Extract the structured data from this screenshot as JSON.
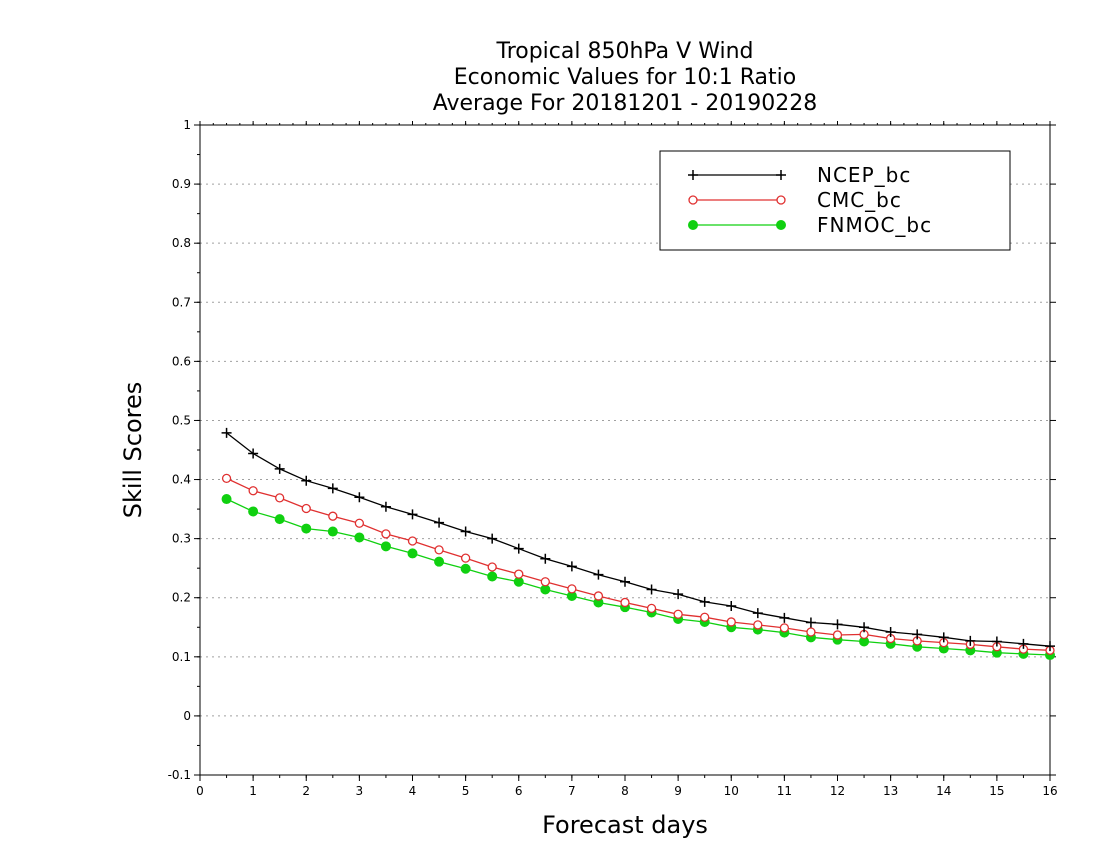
{
  "chart_data": {
    "type": "line",
    "title": [
      "Tropical 850hPa V Wind",
      "Economic Values for 10:1 Ratio",
      "Average For 20181201 - 20190228"
    ],
    "xlabel": "Forecast days",
    "ylabel": "Skill Scores",
    "xlim": [
      0,
      16
    ],
    "ylim": [
      -0.1,
      1
    ],
    "xticks": [
      "0",
      "1",
      "2",
      "3",
      "4",
      "5",
      "6",
      "7",
      "8",
      "9",
      "10",
      "11",
      "12",
      "13",
      "14",
      "15",
      "16"
    ],
    "yticks": [
      "-0.1",
      "0",
      "0.1",
      "0.2",
      "0.3",
      "0.4",
      "0.5",
      "0.6",
      "0.7",
      "0.8",
      "0.9",
      "1"
    ],
    "ytick_values": [
      -0.1,
      0,
      0.1,
      0.2,
      0.3,
      0.4,
      0.5,
      0.6,
      0.7,
      0.8,
      0.9,
      1
    ],
    "grid": true,
    "legend_position": "top-right",
    "x": [
      0.5,
      1,
      1.5,
      2,
      2.5,
      3,
      3.5,
      4,
      4.5,
      5,
      5.5,
      6,
      6.5,
      7,
      7.5,
      8,
      8.5,
      9,
      9.5,
      10,
      10.5,
      11,
      11.5,
      12,
      12.5,
      13,
      13.5,
      14,
      14.5,
      15,
      15.5,
      16
    ],
    "series": [
      {
        "name": "NCEP_bc",
        "color": "#000000",
        "marker": "plus",
        "values": [
          0.479,
          0.444,
          0.418,
          0.398,
          0.385,
          0.37,
          0.354,
          0.341,
          0.327,
          0.312,
          0.3,
          0.283,
          0.266,
          0.253,
          0.239,
          0.227,
          0.214,
          0.206,
          0.193,
          0.186,
          0.174,
          0.166,
          0.158,
          0.155,
          0.15,
          0.142,
          0.138,
          0.133,
          0.127,
          0.126,
          0.122,
          0.118
        ]
      },
      {
        "name": "CMC_bc",
        "color": "#e03030",
        "marker": "open-circle",
        "values": [
          0.402,
          0.381,
          0.369,
          0.351,
          0.338,
          0.326,
          0.308,
          0.296,
          0.281,
          0.267,
          0.252,
          0.24,
          0.227,
          0.215,
          0.203,
          0.192,
          0.182,
          0.172,
          0.167,
          0.159,
          0.154,
          0.149,
          0.142,
          0.137,
          0.138,
          0.131,
          0.127,
          0.124,
          0.121,
          0.117,
          0.113,
          0.111
        ]
      },
      {
        "name": "FNMOC_bc",
        "color": "#10d010",
        "marker": "filled-circle",
        "values": [
          0.367,
          0.346,
          0.333,
          0.317,
          0.312,
          0.302,
          0.287,
          0.275,
          0.261,
          0.249,
          0.236,
          0.227,
          0.214,
          0.203,
          0.192,
          0.184,
          0.175,
          0.164,
          0.159,
          0.15,
          0.146,
          0.141,
          0.133,
          0.129,
          0.126,
          0.122,
          0.117,
          0.114,
          0.111,
          0.107,
          0.105,
          0.103
        ]
      }
    ]
  }
}
